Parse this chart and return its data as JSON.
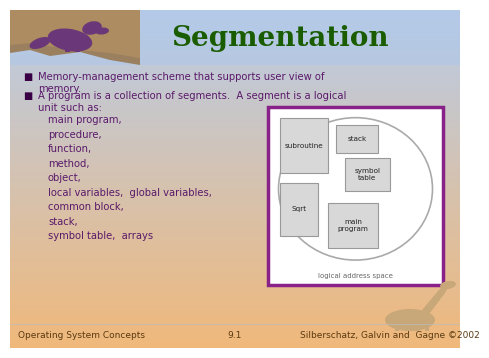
{
  "title": "Segmentation",
  "title_color": "#1a5c00",
  "title_fontsize": 20,
  "bg_top_color": "#b8cce8",
  "bg_bottom_color": "#f0b87a",
  "bullet_color": "#3a0045",
  "text_color": "#5a1a6a",
  "bullet1": "Memory-management scheme that supports user view of\nmemory.",
  "bullet2": "A program is a collection of segments.  A segment is a logical\nunit such as:",
  "list_items": [
    "main program,",
    "procedure,",
    "function,",
    "method,",
    "object,",
    "local variables,  global variables,",
    "common block,",
    "stack,",
    "symbol table,  arrays"
  ],
  "diagram_border_color": "#882288",
  "diagram_label": "logical address space",
  "footer_left": "Operating System Concepts",
  "footer_center": "9.1",
  "footer_right": "Silberschatz, Galvin and  Gagne ©2002",
  "footer_color": "#5a3a10",
  "footer_fontsize": 6.5
}
